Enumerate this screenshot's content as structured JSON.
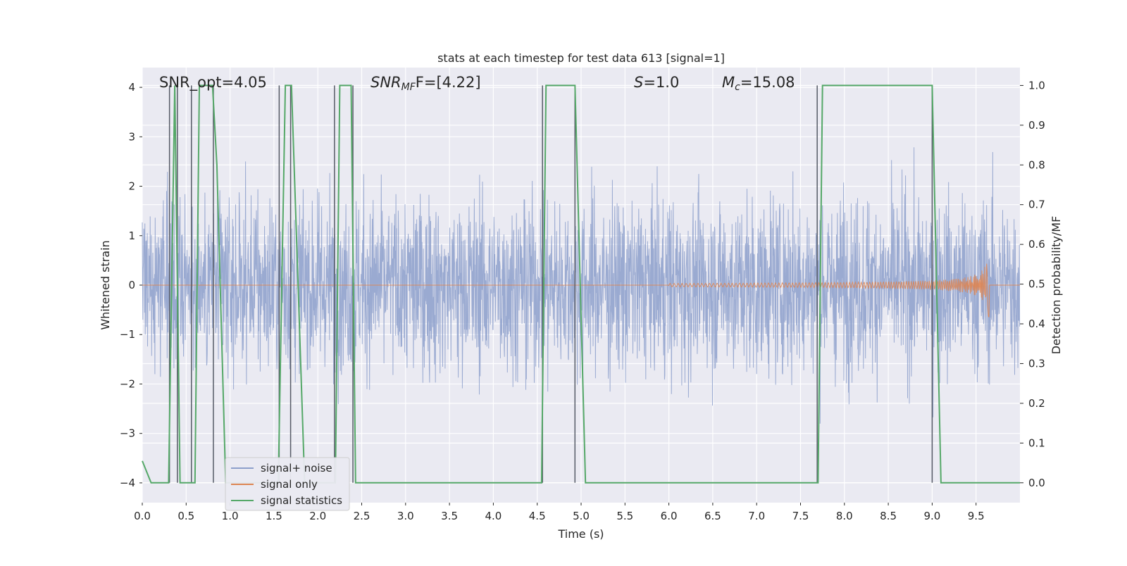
{
  "chart_data": {
    "type": "line",
    "title": "stats at each timestep for test data 613 [signal=1]",
    "xlabel": "Time (s)",
    "ylabel_left": "Whitened strain",
    "ylabel_right": "Detection probability/MF",
    "xlim": [
      0.0,
      10.0
    ],
    "ylim_left": [
      -4.4,
      4.4
    ],
    "ylim_right": [
      -0.05,
      1.045
    ],
    "grid": true,
    "legend_placement": "lower-left",
    "xticks": [
      "0.0",
      "0.5",
      "1.0",
      "1.5",
      "2.0",
      "2.5",
      "3.0",
      "3.5",
      "4.0",
      "4.5",
      "5.0",
      "5.5",
      "6.0",
      "6.5",
      "7.0",
      "7.5",
      "8.0",
      "8.5",
      "9.0",
      "9.5"
    ],
    "yticks_left": [
      "4",
      "3",
      "2",
      "1",
      "0",
      "−1",
      "−2",
      "−3",
      "−4"
    ],
    "yticks_right": [
      "1.0",
      "0.9",
      "0.8",
      "0.7",
      "0.6",
      "0.5",
      "0.4",
      "0.3",
      "0.2",
      "0.1",
      "0.0"
    ],
    "annotations": {
      "snr_opt": "SNR_opt=4.05",
      "snr_mf_sym": "SNR",
      "snr_mf_sub": "MF",
      "snr_mf_val": "F=[4.22]",
      "s_sym": "S",
      "s_val": "=1.0",
      "mc_sym": "M",
      "mc_sub": "c",
      "mc_val": "=15.08"
    },
    "series": [
      {
        "name": "signal+ noise",
        "color": "#8c9fcb",
        "description_of_values": "noisy whitened strain, roughly gaussian with std ~1.2 over 0-10 s"
      },
      {
        "name": "signal only",
        "color": "#dd8452",
        "chirp_start": 6.0,
        "chirp_merger": 9.65,
        "peak_amplitude": 0.8
      },
      {
        "name": "signal statistics",
        "color": "#55a868",
        "points": [
          [
            0.0,
            0.055
          ],
          [
            0.1,
            0.0
          ],
          [
            0.3,
            0.0
          ],
          [
            0.37,
            1.0
          ],
          [
            0.43,
            0.0
          ],
          [
            0.5,
            0.0
          ],
          [
            0.55,
            0.0
          ],
          [
            0.6,
            0.0
          ],
          [
            0.65,
            1.0
          ],
          [
            0.8,
            1.0
          ],
          [
            0.85,
            0.8
          ],
          [
            0.95,
            0.0
          ],
          [
            1.55,
            0.0
          ],
          [
            1.63,
            1.0
          ],
          [
            1.7,
            1.0
          ],
          [
            1.85,
            0.0
          ],
          [
            2.2,
            0.0
          ],
          [
            2.25,
            1.0
          ],
          [
            2.38,
            1.0
          ],
          [
            2.43,
            0.0
          ],
          [
            4.55,
            0.0
          ],
          [
            4.6,
            1.0
          ],
          [
            4.93,
            1.0
          ],
          [
            5.05,
            0.0
          ],
          [
            7.7,
            0.0
          ],
          [
            7.75,
            1.0
          ],
          [
            9.0,
            1.0
          ],
          [
            9.1,
            0.0
          ],
          [
            9.2,
            0.0
          ],
          [
            10.0,
            0.0
          ]
        ]
      }
    ],
    "vlines_dark": [
      0.31,
      0.4,
      0.56,
      0.81,
      1.56,
      1.69,
      2.19,
      2.4,
      4.56,
      4.93,
      7.69,
      9.0
    ]
  },
  "legend": {
    "item1": "signal+ noise",
    "item2": "signal only",
    "item3": "signal statistics"
  }
}
